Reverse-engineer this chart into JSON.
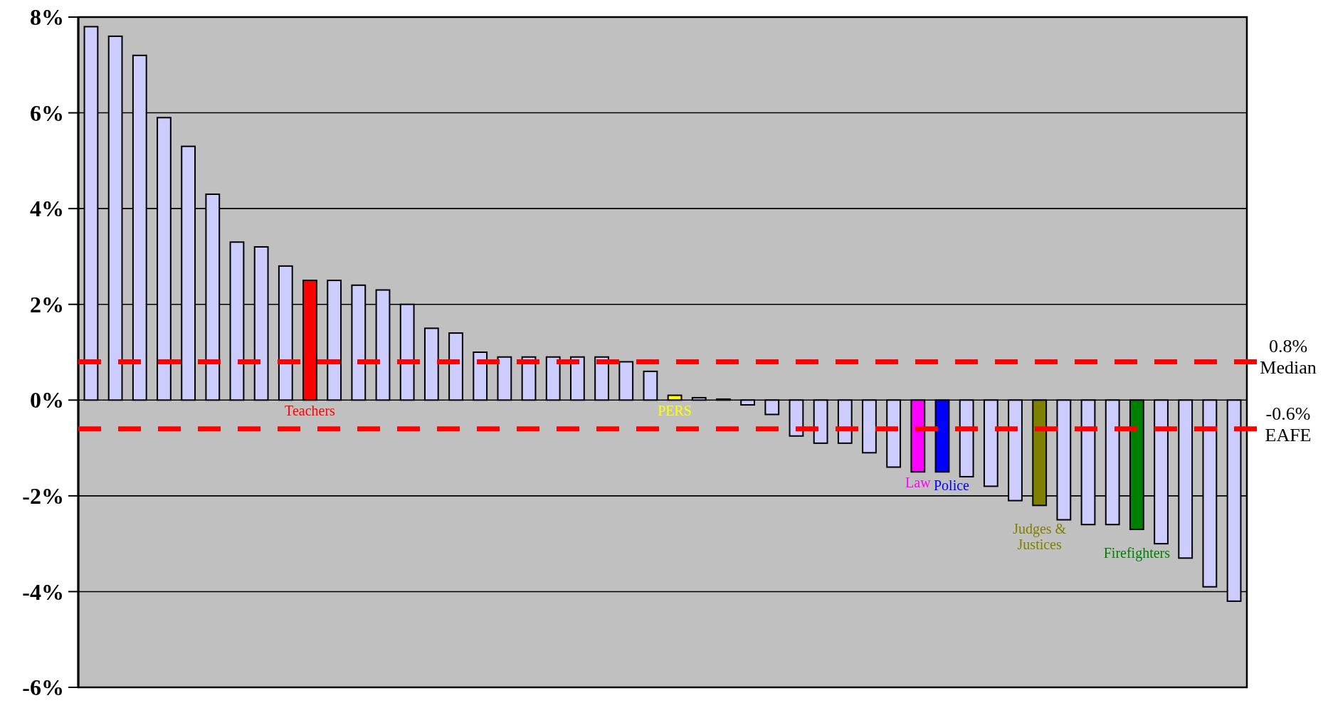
{
  "chart_data": {
    "type": "bar",
    "categories": [
      null,
      null,
      null,
      null,
      null,
      null,
      null,
      null,
      null,
      "Teachers",
      null,
      null,
      null,
      null,
      null,
      null,
      null,
      null,
      null,
      null,
      null,
      null,
      null,
      null,
      "PERS",
      null,
      null,
      null,
      null,
      null,
      null,
      null,
      null,
      null,
      "Law",
      "Police",
      null,
      null,
      null,
      "Judges &\nJustices",
      null,
      null,
      null,
      "Firefighters",
      null,
      null,
      null,
      null
    ],
    "values": [
      7.8,
      7.6,
      7.2,
      5.9,
      5.3,
      4.3,
      3.3,
      3.2,
      2.8,
      2.5,
      2.5,
      2.4,
      2.3,
      2.0,
      1.5,
      1.4,
      1.0,
      0.9,
      0.9,
      0.9,
      0.9,
      0.9,
      0.8,
      0.6,
      0.1,
      0.05,
      0.02,
      -0.1,
      -0.3,
      -0.75,
      -0.9,
      -0.9,
      -1.1,
      -1.4,
      -1.5,
      -1.5,
      -1.6,
      -1.8,
      -2.1,
      -2.2,
      -2.5,
      -2.6,
      -2.6,
      -2.7,
      -3.0,
      -3.3,
      -3.9,
      -4.2
    ],
    "colors": [
      "#ccccff",
      "#ccccff",
      "#ccccff",
      "#ccccff",
      "#ccccff",
      "#ccccff",
      "#ccccff",
      "#ccccff",
      "#ccccff",
      "#ff0000",
      "#ccccff",
      "#ccccff",
      "#ccccff",
      "#ccccff",
      "#ccccff",
      "#ccccff",
      "#ccccff",
      "#ccccff",
      "#ccccff",
      "#ccccff",
      "#ccccff",
      "#ccccff",
      "#ccccff",
      "#ccccff",
      "#ffff00",
      "#ccccff",
      "#ccccff",
      "#ccccff",
      "#ccccff",
      "#ccccff",
      "#ccccff",
      "#ccccff",
      "#ccccff",
      "#ccccff",
      "#ff00ff",
      "#0000ff",
      "#ccccff",
      "#ccccff",
      "#ccccff",
      "#808000",
      "#ccccff",
      "#ccccff",
      "#ccccff",
      "#008000",
      "#ccccff",
      "#ccccff",
      "#ccccff",
      "#ccccff"
    ],
    "ylim": [
      -6,
      8
    ],
    "yticks": [
      {
        "value": -6,
        "label": "-6%"
      },
      {
        "value": -4,
        "label": "-4%"
      },
      {
        "value": -2,
        "label": "-2%"
      },
      {
        "value": 0,
        "label": "0%"
      },
      {
        "value": 2,
        "label": "2%"
      },
      {
        "value": 4,
        "label": "4%"
      },
      {
        "value": 6,
        "label": "6%"
      },
      {
        "value": 8,
        "label": "8%"
      }
    ],
    "grid": "y",
    "ref_lines": [
      {
        "axis": "y",
        "value": 0.8,
        "label": "0.8%\nMedian",
        "color": "#ff0000",
        "line_style": "dashed"
      },
      {
        "axis": "y",
        "value": -0.6,
        "label": "-0.6%\nEAFE",
        "color": "#ff0000",
        "line_style": "dashed"
      }
    ]
  }
}
